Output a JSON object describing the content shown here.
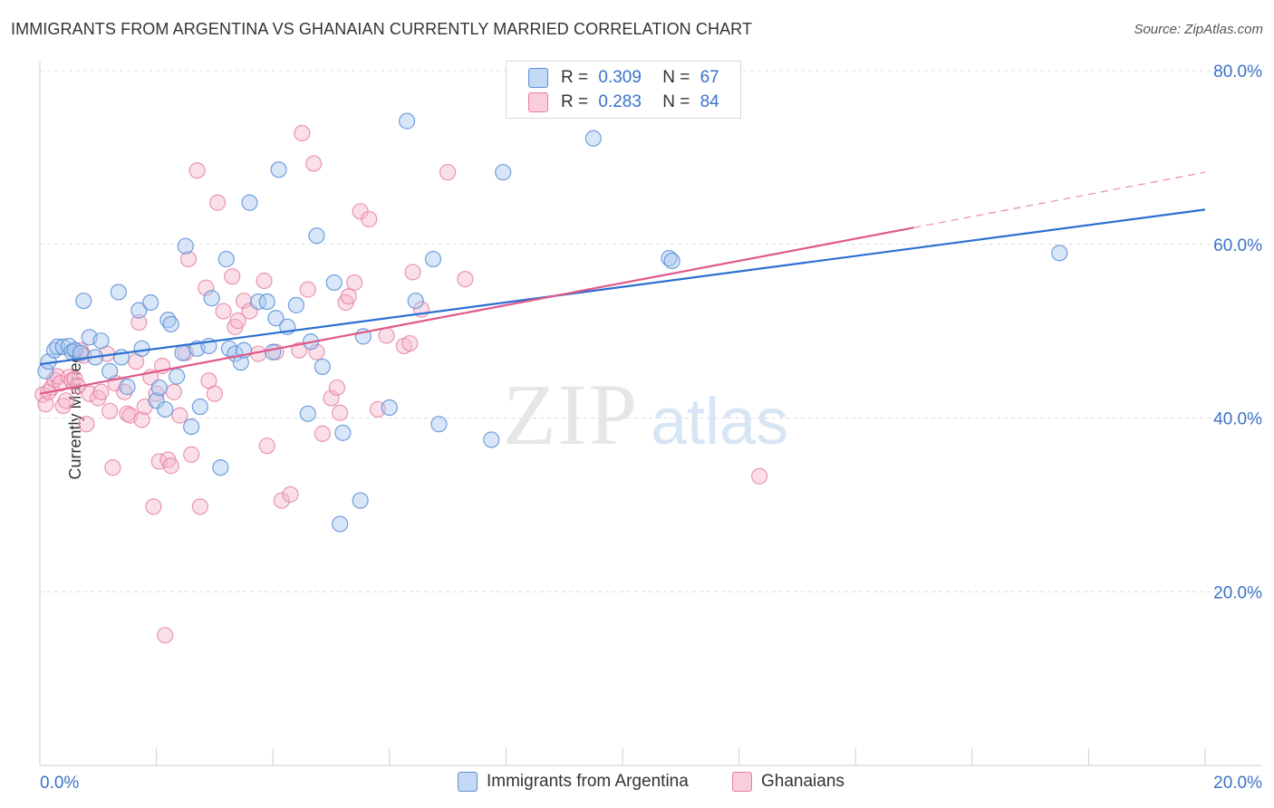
{
  "title": "IMMIGRANTS FROM ARGENTINA VS GHANAIAN CURRENTLY MARRIED CORRELATION CHART",
  "source": "Source: ZipAtlas.com",
  "watermark": {
    "zip": "ZIP",
    "atlas": "atlas"
  },
  "legend_top": [
    {
      "r_label": "R =",
      "r_value": "0.309",
      "n_label": "N =",
      "n_value": "67"
    },
    {
      "r_label": "R =",
      "r_value": "0.283",
      "n_label": "N =",
      "n_value": "84"
    }
  ],
  "legend_bottom": [
    "Immigrants from Argentina",
    "Ghanaians"
  ],
  "colors": {
    "blue_fill": "#a8c8ef",
    "blue_stroke": "#5b8fd6",
    "blue_line": "#2b6fd1",
    "pink_fill": "#f6b8cc",
    "pink_stroke": "#e57ea0",
    "pink_line": "#e0588a",
    "axis_text": "#3a73c9",
    "grid": "#dcdcdc"
  },
  "chart_data": {
    "type": "scatter",
    "title": "IMMIGRANTS FROM ARGENTINA VS GHANAIAN CURRENTLY MARRIED CORRELATION CHART",
    "xlabel": "",
    "ylabel": "Currently Married",
    "xlim": [
      0,
      20
    ],
    "ylim": [
      0,
      80
    ],
    "x_tick_labels": [
      "0.0%",
      "20.0%"
    ],
    "y_ticks": [
      20,
      40,
      60,
      80
    ],
    "y_tick_labels": [
      "20.0%",
      "40.0%",
      "60.0%",
      "80.0%"
    ],
    "grid": "horizontal dashed",
    "series": [
      {
        "name": "Immigrants from Argentina",
        "R": 0.309,
        "N": 67,
        "trend": {
          "x0": 0,
          "y0": 46.2,
          "x1": 20,
          "y1": 64.0,
          "dashed_from": null
        },
        "points": [
          [
            0.1,
            45.4
          ],
          [
            0.15,
            46.5
          ],
          [
            0.25,
            47.8
          ],
          [
            0.3,
            48.2
          ],
          [
            0.4,
            48.2
          ],
          [
            0.5,
            48.3
          ],
          [
            0.55,
            47.6
          ],
          [
            0.6,
            47.8
          ],
          [
            0.7,
            47.5
          ],
          [
            0.75,
            53.5
          ],
          [
            0.85,
            49.3
          ],
          [
            0.95,
            47.0
          ],
          [
            1.05,
            48.9
          ],
          [
            1.2,
            45.4
          ],
          [
            1.35,
            54.5
          ],
          [
            1.4,
            47.0
          ],
          [
            1.5,
            43.6
          ],
          [
            1.7,
            52.4
          ],
          [
            1.75,
            48.0
          ],
          [
            1.9,
            53.3
          ],
          [
            2.0,
            42.0
          ],
          [
            2.05,
            43.5
          ],
          [
            2.15,
            41.0
          ],
          [
            2.2,
            51.3
          ],
          [
            2.25,
            50.8
          ],
          [
            2.35,
            44.8
          ],
          [
            2.45,
            47.5
          ],
          [
            2.5,
            59.8
          ],
          [
            2.6,
            39.0
          ],
          [
            2.7,
            48.0
          ],
          [
            2.75,
            41.3
          ],
          [
            2.9,
            48.3
          ],
          [
            2.95,
            53.8
          ],
          [
            3.1,
            34.3
          ],
          [
            3.2,
            58.3
          ],
          [
            3.25,
            48.0
          ],
          [
            3.35,
            47.4
          ],
          [
            3.45,
            46.4
          ],
          [
            3.5,
            47.8
          ],
          [
            3.6,
            64.8
          ],
          [
            3.75,
            53.4
          ],
          [
            3.9,
            53.4
          ],
          [
            4.0,
            47.6
          ],
          [
            4.05,
            51.5
          ],
          [
            4.1,
            68.6
          ],
          [
            4.25,
            50.5
          ],
          [
            4.4,
            53.0
          ],
          [
            4.6,
            40.5
          ],
          [
            4.65,
            48.8
          ],
          [
            4.75,
            61.0
          ],
          [
            4.85,
            45.9
          ],
          [
            5.05,
            55.6
          ],
          [
            5.15,
            27.8
          ],
          [
            5.2,
            38.3
          ],
          [
            5.5,
            30.5
          ],
          [
            5.55,
            49.4
          ],
          [
            6.0,
            41.2
          ],
          [
            6.3,
            74.2
          ],
          [
            6.45,
            53.5
          ],
          [
            6.75,
            58.3
          ],
          [
            6.85,
            39.3
          ],
          [
            7.75,
            37.5
          ],
          [
            7.95,
            68.3
          ],
          [
            9.5,
            72.2
          ],
          [
            10.8,
            58.4
          ],
          [
            10.85,
            58.1
          ],
          [
            17.5,
            59.0
          ]
        ]
      },
      {
        "name": "Ghanaians",
        "R": 0.283,
        "N": 84,
        "trend": {
          "x0": 0,
          "y0": 42.8,
          "x1": 20,
          "y1": 68.3,
          "dashed_from": 15.0
        },
        "points": [
          [
            0.05,
            42.7
          ],
          [
            0.1,
            41.6
          ],
          [
            0.15,
            43.0
          ],
          [
            0.2,
            43.5
          ],
          [
            0.25,
            44.4
          ],
          [
            0.3,
            44.8
          ],
          [
            0.35,
            44.0
          ],
          [
            0.4,
            41.4
          ],
          [
            0.45,
            42.0
          ],
          [
            0.5,
            44.7
          ],
          [
            0.55,
            44.3
          ],
          [
            0.6,
            44.5
          ],
          [
            0.65,
            43.7
          ],
          [
            0.7,
            47.8
          ],
          [
            0.75,
            47.2
          ],
          [
            0.8,
            39.3
          ],
          [
            0.85,
            42.8
          ],
          [
            1.0,
            42.3
          ],
          [
            1.05,
            43.0
          ],
          [
            1.15,
            47.4
          ],
          [
            1.2,
            40.8
          ],
          [
            1.25,
            34.3
          ],
          [
            1.3,
            44.0
          ],
          [
            1.45,
            43.0
          ],
          [
            1.5,
            40.5
          ],
          [
            1.55,
            40.3
          ],
          [
            1.65,
            46.5
          ],
          [
            1.7,
            51.0
          ],
          [
            1.75,
            39.8
          ],
          [
            1.8,
            41.3
          ],
          [
            1.9,
            44.7
          ],
          [
            1.95,
            29.8
          ],
          [
            2.0,
            42.8
          ],
          [
            2.05,
            35.0
          ],
          [
            2.1,
            46.0
          ],
          [
            2.15,
            15.0
          ],
          [
            2.2,
            35.2
          ],
          [
            2.25,
            34.5
          ],
          [
            2.3,
            43.0
          ],
          [
            2.4,
            40.3
          ],
          [
            2.5,
            47.5
          ],
          [
            2.55,
            58.3
          ],
          [
            2.6,
            35.8
          ],
          [
            2.7,
            68.5
          ],
          [
            2.75,
            29.8
          ],
          [
            2.85,
            55.0
          ],
          [
            2.9,
            44.3
          ],
          [
            3.0,
            42.8
          ],
          [
            3.05,
            64.8
          ],
          [
            3.15,
            52.3
          ],
          [
            3.3,
            56.3
          ],
          [
            3.35,
            50.5
          ],
          [
            3.4,
            51.2
          ],
          [
            3.5,
            53.5
          ],
          [
            3.6,
            52.3
          ],
          [
            3.75,
            47.4
          ],
          [
            3.85,
            55.8
          ],
          [
            3.9,
            36.8
          ],
          [
            4.05,
            47.6
          ],
          [
            4.15,
            30.5
          ],
          [
            4.3,
            31.2
          ],
          [
            4.45,
            47.8
          ],
          [
            4.5,
            72.8
          ],
          [
            4.6,
            54.8
          ],
          [
            4.7,
            69.3
          ],
          [
            4.75,
            47.6
          ],
          [
            4.85,
            38.2
          ],
          [
            5.0,
            42.3
          ],
          [
            5.1,
            43.5
          ],
          [
            5.15,
            40.6
          ],
          [
            5.25,
            53.3
          ],
          [
            5.3,
            54.0
          ],
          [
            5.4,
            55.6
          ],
          [
            5.5,
            63.8
          ],
          [
            5.65,
            62.9
          ],
          [
            5.8,
            41.0
          ],
          [
            5.95,
            49.5
          ],
          [
            6.25,
            48.3
          ],
          [
            6.35,
            48.6
          ],
          [
            6.4,
            56.8
          ],
          [
            6.55,
            52.5
          ],
          [
            7.0,
            68.3
          ],
          [
            7.3,
            56.0
          ],
          [
            12.35,
            33.3
          ]
        ]
      }
    ]
  }
}
